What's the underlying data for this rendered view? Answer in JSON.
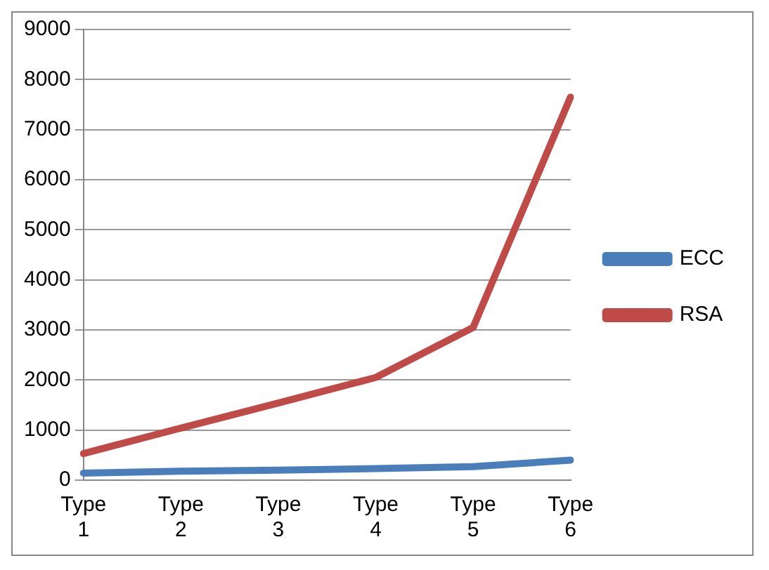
{
  "chart_data": {
    "type": "line",
    "categories": [
      "Type 1",
      "Type 2",
      "Type 3",
      "Type 4",
      "Type 5",
      "Type 6"
    ],
    "series": [
      {
        "name": "ECC",
        "color": "#4a7ebb",
        "values": [
          140,
          180,
          200,
          230,
          270,
          400
        ]
      },
      {
        "name": "RSA",
        "color": "#be4b48",
        "values": [
          530,
          1040,
          1540,
          2050,
          3050,
          7650
        ]
      }
    ],
    "ylim": [
      0,
      9000
    ],
    "yticks": [
      0,
      1000,
      2000,
      3000,
      4000,
      5000,
      6000,
      7000,
      8000,
      9000
    ],
    "grid": "y",
    "legend": "right",
    "marker": "none"
  }
}
